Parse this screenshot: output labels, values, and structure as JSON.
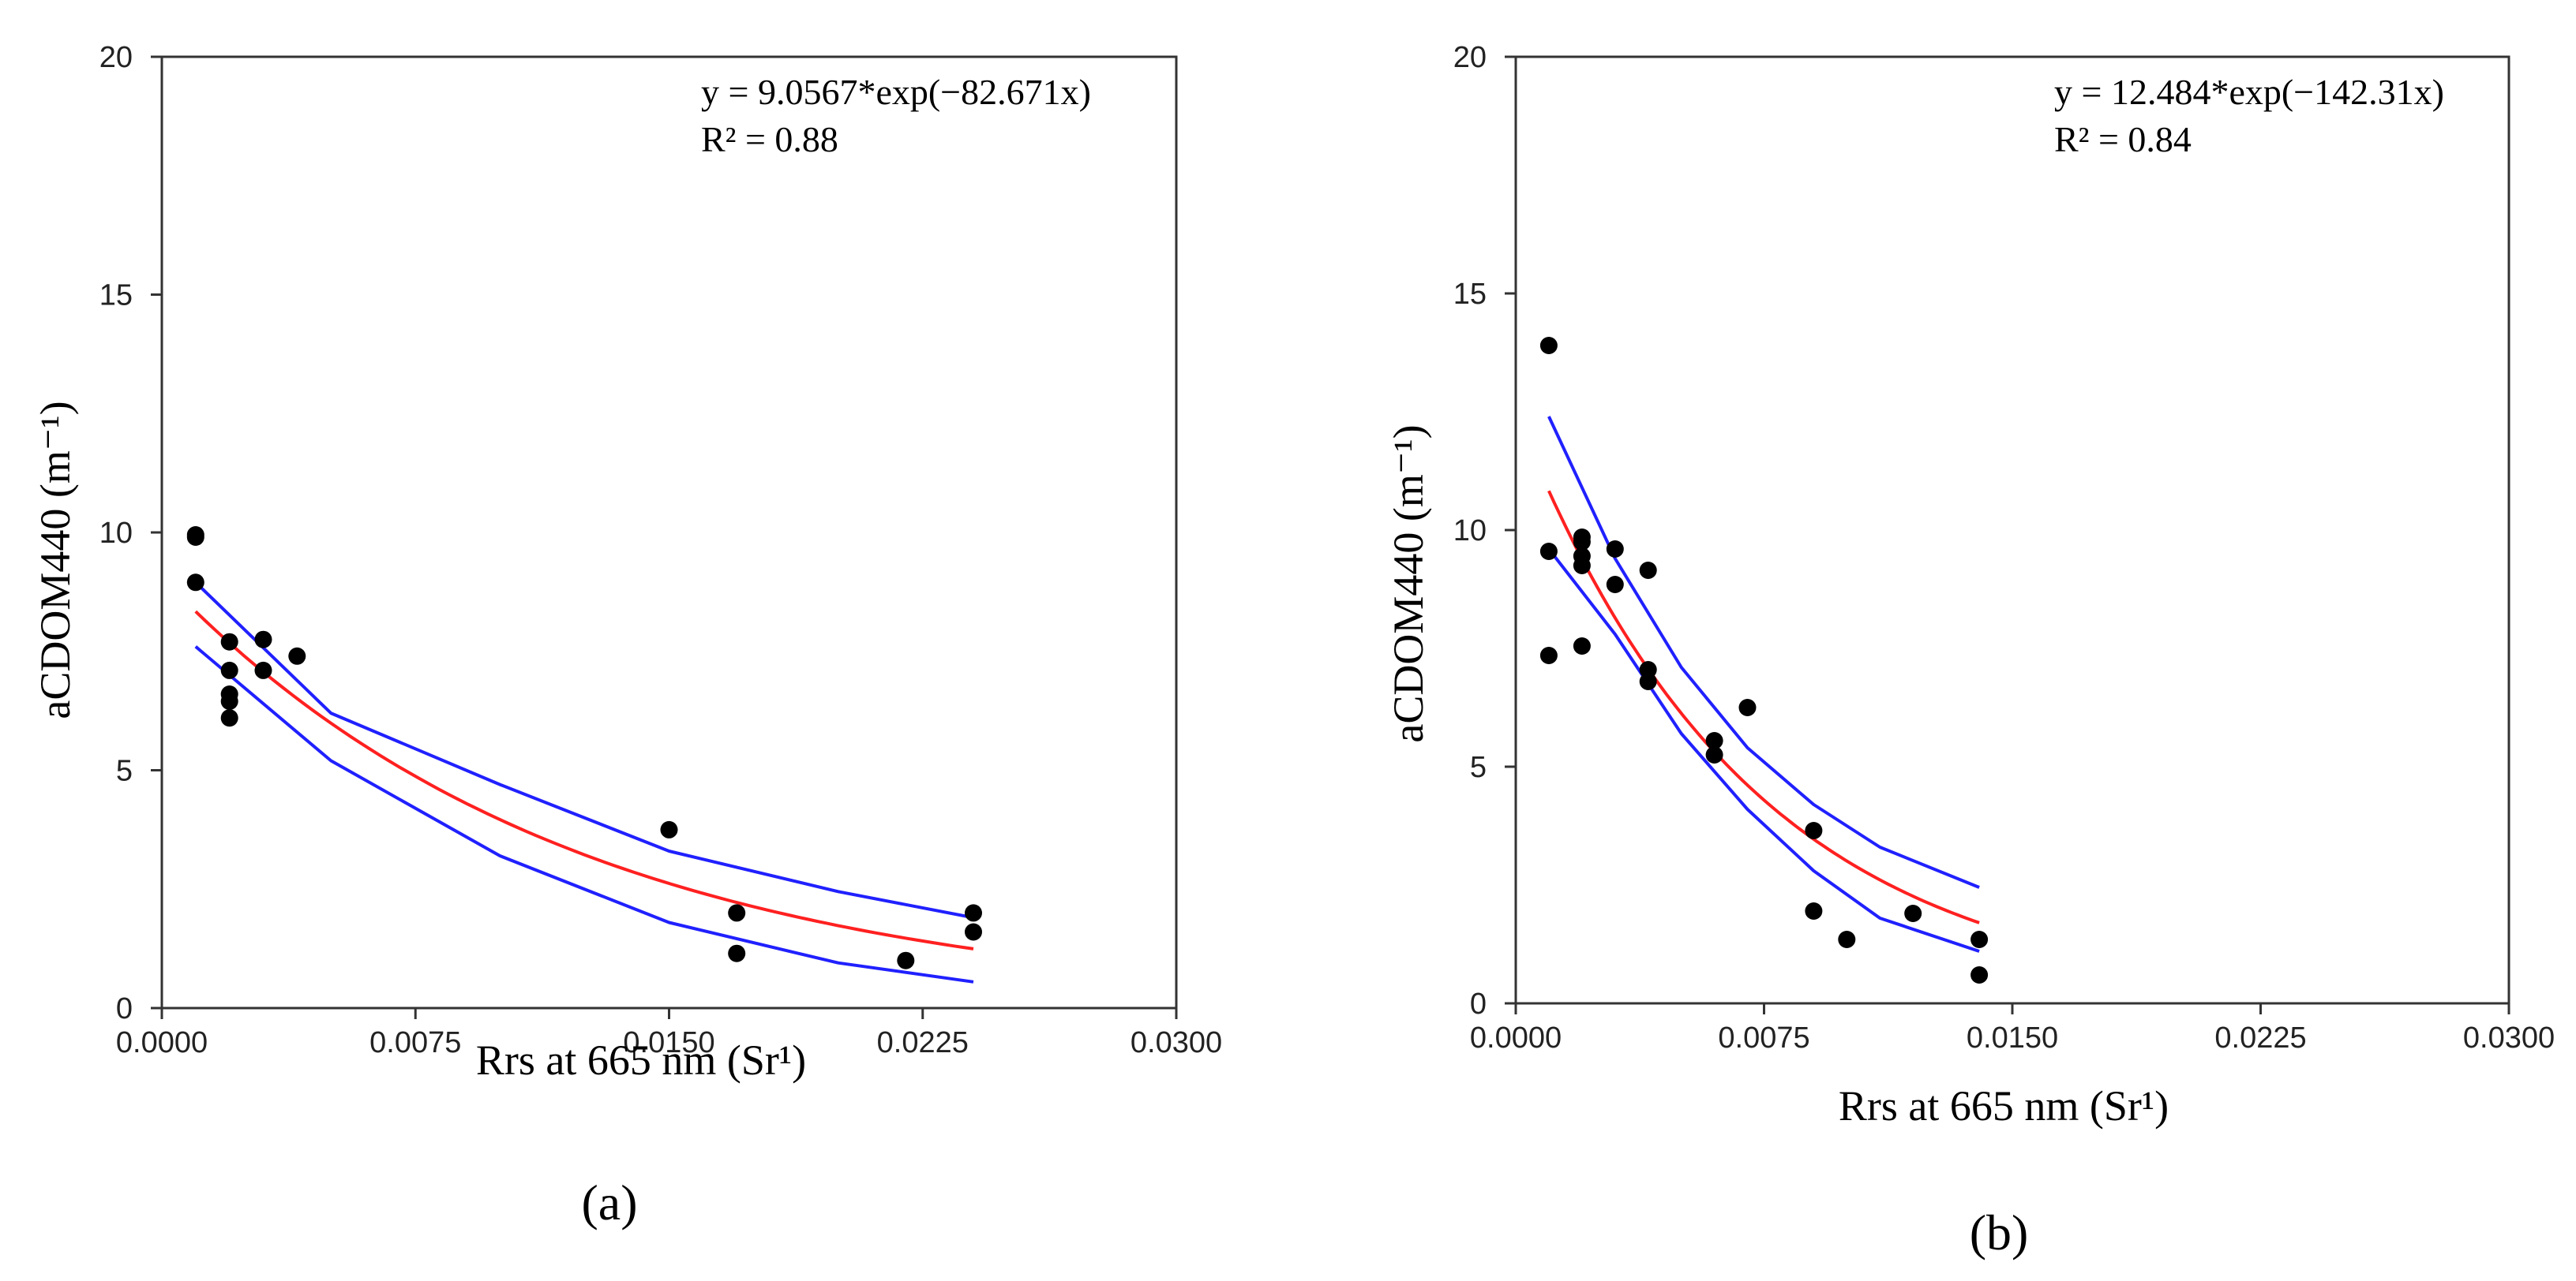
{
  "chart_data": [
    {
      "type": "scatter",
      "panel": "a",
      "panel_label": "(a)",
      "xlabel": "Rrs at 665 nm (Sr¹)",
      "ylabel": "aCDOM440 (m⁻¹)",
      "xlim": [
        0,
        0.03
      ],
      "ylim": [
        0,
        20
      ],
      "x_ticks": [
        0,
        0.0075,
        0.015,
        0.0225,
        0.03
      ],
      "x_tick_labels": [
        "0.0000",
        "0.0075",
        "0.0150",
        "0.0225",
        "0.0300"
      ],
      "y_ticks": [
        0,
        5,
        10,
        15,
        20
      ],
      "y_tick_labels": [
        "0",
        "5",
        "10",
        "15",
        "20"
      ],
      "equation": "y = 9.0567*exp(−82.671x)",
      "r_squared": "R² = 0.88",
      "fit": {
        "a": 9.0567,
        "b": -82.671,
        "x_range": [
          0.001,
          0.024
        ],
        "color": "#ff2020"
      },
      "confidence_band": {
        "color": "#2020ff",
        "upper": [
          [
            0.001,
            8.95
          ],
          [
            0.005,
            6.2
          ],
          [
            0.01,
            4.7
          ],
          [
            0.015,
            3.3
          ],
          [
            0.02,
            2.45
          ],
          [
            0.024,
            1.9
          ]
        ],
        "lower": [
          [
            0.001,
            7.6
          ],
          [
            0.005,
            5.2
          ],
          [
            0.01,
            3.2
          ],
          [
            0.015,
            1.8
          ],
          [
            0.02,
            0.95
          ],
          [
            0.024,
            0.55
          ]
        ]
      },
      "series": [
        {
          "name": "observations",
          "color": "#000000",
          "points": [
            [
              0.001,
              9.95
            ],
            [
              0.001,
              9.9
            ],
            [
              0.001,
              8.95
            ],
            [
              0.002,
              7.7
            ],
            [
              0.002,
              7.1
            ],
            [
              0.002,
              6.6
            ],
            [
              0.002,
              6.45
            ],
            [
              0.002,
              6.1
            ],
            [
              0.003,
              7.75
            ],
            [
              0.003,
              7.1
            ],
            [
              0.004,
              7.4
            ],
            [
              0.015,
              3.75
            ],
            [
              0.017,
              2.0
            ],
            [
              0.017,
              1.15
            ],
            [
              0.022,
              1.0
            ],
            [
              0.024,
              2.0
            ],
            [
              0.024,
              1.6
            ]
          ]
        }
      ]
    },
    {
      "type": "scatter",
      "panel": "b",
      "panel_label": "(b)",
      "xlabel": "Rrs at 665 nm (Sr¹)",
      "ylabel": "aCDOM440 (m⁻¹)",
      "xlim": [
        0,
        0.03
      ],
      "ylim": [
        0,
        20
      ],
      "x_ticks": [
        0,
        0.0075,
        0.015,
        0.0225,
        0.03
      ],
      "x_tick_labels": [
        "0.0000",
        "0.0075",
        "0.0150",
        "0.0225",
        "0.0300"
      ],
      "y_ticks": [
        0,
        5,
        10,
        15,
        20
      ],
      "y_tick_labels": [
        "0",
        "5",
        "10",
        "15",
        "20"
      ],
      "equation": "y = 12.484*exp(−142.31x)",
      "r_squared": "R² = 0.84",
      "fit": {
        "a": 12.484,
        "b": -142.31,
        "x_range": [
          0.001,
          0.014
        ],
        "color": "#ff2020"
      },
      "confidence_band": {
        "color": "#2020ff",
        "upper": [
          [
            0.001,
            12.4
          ],
          [
            0.003,
            9.4
          ],
          [
            0.005,
            7.1
          ],
          [
            0.007,
            5.4
          ],
          [
            0.009,
            4.2
          ],
          [
            0.011,
            3.3
          ],
          [
            0.014,
            2.45
          ]
        ],
        "lower": [
          [
            0.001,
            9.6
          ],
          [
            0.003,
            7.8
          ],
          [
            0.005,
            5.7
          ],
          [
            0.007,
            4.1
          ],
          [
            0.009,
            2.8
          ],
          [
            0.011,
            1.8
          ],
          [
            0.014,
            1.1
          ]
        ]
      },
      "series": [
        {
          "name": "observations",
          "color": "#000000",
          "points": [
            [
              0.001,
              13.9
            ],
            [
              0.001,
              9.55
            ],
            [
              0.001,
              7.35
            ],
            [
              0.002,
              9.85
            ],
            [
              0.002,
              9.75
            ],
            [
              0.002,
              9.45
            ],
            [
              0.002,
              9.25
            ],
            [
              0.002,
              7.55
            ],
            [
              0.003,
              9.6
            ],
            [
              0.003,
              8.85
            ],
            [
              0.004,
              9.15
            ],
            [
              0.004,
              7.05
            ],
            [
              0.004,
              6.8
            ],
            [
              0.006,
              5.55
            ],
            [
              0.006,
              5.25
            ],
            [
              0.007,
              6.25
            ],
            [
              0.009,
              3.65
            ],
            [
              0.009,
              1.95
            ],
            [
              0.01,
              1.35
            ],
            [
              0.012,
              1.9
            ],
            [
              0.014,
              1.35
            ],
            [
              0.014,
              0.6
            ]
          ]
        }
      ]
    }
  ]
}
